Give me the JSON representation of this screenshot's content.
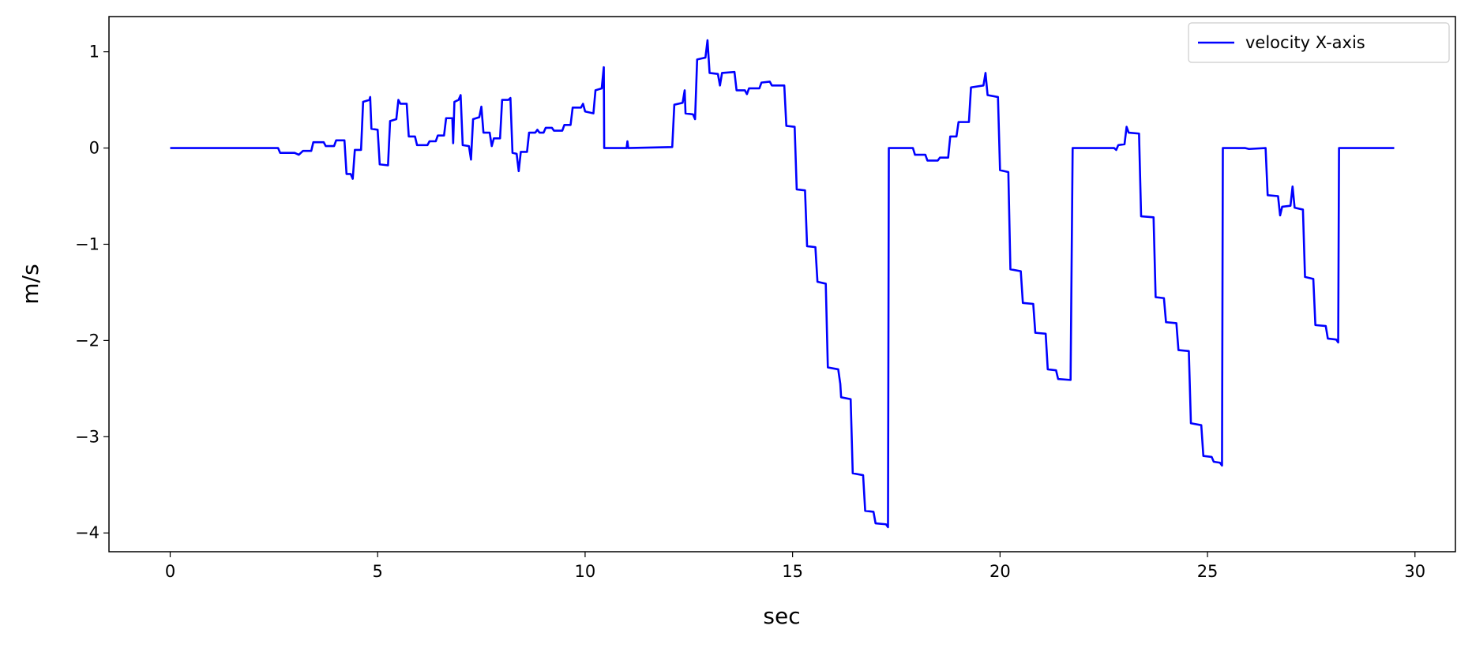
{
  "chart_data": {
    "type": "line",
    "xlabel": "sec",
    "ylabel": "m/s",
    "xlim": [
      -1.475,
      30.975
    ],
    "ylim": [
      -4.195,
      1.366
    ],
    "xticks": [
      0,
      5,
      10,
      15,
      20,
      25,
      30
    ],
    "yticks": [
      {
        "value": -4,
        "label": "−4"
      },
      {
        "value": -3,
        "label": "−3"
      },
      {
        "value": -2,
        "label": "−2"
      },
      {
        "value": -1,
        "label": "−1"
      },
      0,
      1
    ],
    "legend": "upper right",
    "series": [
      {
        "name": "velocity X-axis",
        "color": "#0000ff",
        "x": [
          0,
          2.6,
          2.65,
          3.0,
          3.1,
          3.2,
          3.4,
          3.45,
          3.7,
          3.75,
          3.95,
          4.0,
          4.2,
          4.25,
          4.35,
          4.4,
          4.45,
          4.6,
          4.65,
          4.8,
          4.82,
          4.85,
          5.0,
          5.05,
          5.25,
          5.3,
          5.45,
          5.5,
          5.55,
          5.7,
          5.75,
          5.9,
          5.95,
          6.2,
          6.25,
          6.4,
          6.45,
          6.6,
          6.65,
          6.8,
          6.82,
          6.85,
          6.95,
          7.0,
          7.05,
          7.2,
          7.25,
          7.3,
          7.45,
          7.5,
          7.55,
          7.7,
          7.75,
          7.8,
          7.95,
          8.0,
          8.15,
          8.2,
          8.25,
          8.35,
          8.4,
          8.45,
          8.6,
          8.65,
          8.8,
          8.85,
          8.9,
          9.0,
          9.05,
          9.2,
          9.25,
          9.45,
          9.5,
          9.65,
          9.7,
          9.9,
          9.95,
          10.0,
          10.2,
          10.25,
          10.4,
          10.45,
          10.46,
          11.0,
          11.02,
          11.04,
          12.1,
          12.15,
          12.35,
          12.4,
          12.42,
          12.6,
          12.65,
          12.7,
          12.9,
          12.95,
          13.0,
          13.2,
          13.25,
          13.3,
          13.6,
          13.65,
          13.85,
          13.9,
          13.95,
          14.2,
          14.25,
          14.45,
          14.5,
          14.8,
          14.85,
          15.05,
          15.1,
          15.3,
          15.35,
          15.55,
          15.6,
          15.8,
          15.85,
          16.1,
          16.15,
          16.17,
          16.4,
          16.45,
          16.7,
          16.75,
          16.95,
          17.0,
          17.25,
          17.3,
          17.32,
          17.9,
          17.95,
          18.2,
          18.25,
          18.5,
          18.55,
          18.75,
          18.8,
          18.95,
          19.0,
          19.25,
          19.3,
          19.6,
          19.65,
          19.7,
          19.95,
          20.0,
          20.2,
          20.25,
          20.5,
          20.55,
          20.8,
          20.85,
          21.1,
          21.15,
          21.35,
          21.4,
          21.7,
          21.75,
          22.75,
          22.8,
          22.85,
          23.0,
          23.05,
          23.1,
          23.35,
          23.4,
          23.7,
          23.75,
          23.95,
          24.0,
          24.25,
          24.3,
          24.55,
          24.6,
          24.85,
          24.9,
          25.1,
          25.15,
          25.3,
          25.35,
          25.37,
          25.9,
          26.0,
          26.4,
          26.45,
          26.7,
          26.75,
          26.8,
          27.0,
          27.05,
          27.1,
          27.3,
          27.35,
          27.55,
          27.6,
          27.85,
          27.9,
          28.1,
          28.15,
          28.17,
          29.5
        ],
        "values": [
          0,
          0,
          -0.05,
          -0.05,
          -0.07,
          -0.03,
          -0.03,
          0.06,
          0.06,
          0.02,
          0.02,
          0.08,
          0.08,
          -0.27,
          -0.27,
          -0.32,
          -0.02,
          -0.02,
          0.48,
          0.5,
          0.53,
          0.2,
          0.19,
          -0.17,
          -0.18,
          0.28,
          0.3,
          0.5,
          0.46,
          0.46,
          0.12,
          0.12,
          0.03,
          0.03,
          0.07,
          0.07,
          0.13,
          0.13,
          0.31,
          0.31,
          0.05,
          0.48,
          0.5,
          0.55,
          0.03,
          0.02,
          -0.12,
          0.3,
          0.32,
          0.43,
          0.16,
          0.16,
          0.02,
          0.1,
          0.1,
          0.5,
          0.5,
          0.52,
          -0.05,
          -0.06,
          -0.24,
          -0.04,
          -0.04,
          0.16,
          0.16,
          0.19,
          0.16,
          0.16,
          0.21,
          0.21,
          0.18,
          0.18,
          0.24,
          0.24,
          0.42,
          0.42,
          0.46,
          0.38,
          0.36,
          0.6,
          0.62,
          0.84,
          0,
          0,
          0.07,
          0,
          0.01,
          0.45,
          0.47,
          0.6,
          0.36,
          0.35,
          0.3,
          0.92,
          0.94,
          1.12,
          0.78,
          0.77,
          0.65,
          0.78,
          0.79,
          0.6,
          0.6,
          0.56,
          0.62,
          0.62,
          0.68,
          0.69,
          0.65,
          0.65,
          0.23,
          0.22,
          -0.43,
          -0.44,
          -1.02,
          -1.03,
          -1.39,
          -1.41,
          -2.28,
          -2.3,
          -2.45,
          -2.59,
          -2.61,
          -3.38,
          -3.4,
          -3.77,
          -3.78,
          -3.9,
          -3.91,
          -3.94,
          0,
          0,
          -0.07,
          -0.07,
          -0.13,
          -0.13,
          -0.1,
          -0.1,
          0.12,
          0.12,
          0.27,
          0.27,
          0.63,
          0.65,
          0.78,
          0.55,
          0.53,
          -0.23,
          -0.25,
          -1.26,
          -1.28,
          -1.61,
          -1.62,
          -1.92,
          -1.93,
          -2.3,
          -2.31,
          -2.4,
          -2.41,
          0,
          0,
          -0.02,
          0.03,
          0.04,
          0.22,
          0.16,
          0.15,
          -0.71,
          -0.72,
          -1.55,
          -1.56,
          -1.81,
          -1.82,
          -2.1,
          -2.11,
          -2.86,
          -2.88,
          -3.2,
          -3.21,
          -3.26,
          -3.27,
          -3.3,
          0,
          0,
          -0.01,
          0,
          -0.49,
          -0.5,
          -0.7,
          -0.61,
          -0.6,
          -0.4,
          -0.62,
          -0.64,
          -1.34,
          -1.36,
          -1.84,
          -1.85,
          -1.98,
          -1.99,
          -2.02,
          0,
          0
        ]
      }
    ]
  }
}
